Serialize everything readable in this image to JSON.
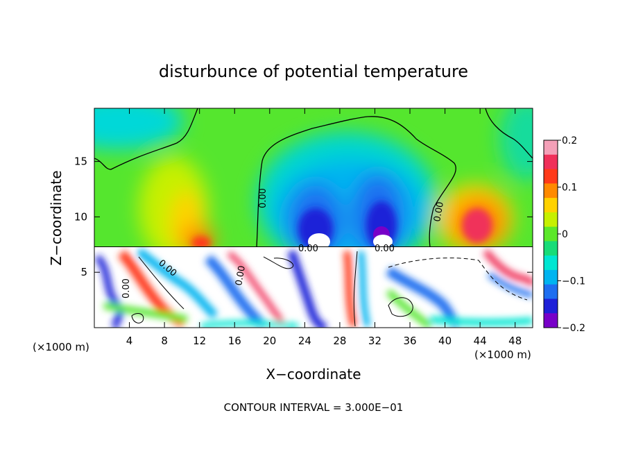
{
  "chart_data": {
    "type": "heatmap",
    "title": "disturbunce of potential temperature",
    "xlabel": "X−coordinate",
    "ylabel": "Z−coordinate",
    "x_unit_left": "(×1000 m)",
    "x_unit_right": "(×1000 m)",
    "xlim": [
      0,
      50
    ],
    "ylim": [
      0,
      19.8
    ],
    "x_ticks": [
      4,
      8,
      12,
      16,
      20,
      24,
      28,
      32,
      36,
      40,
      44,
      48
    ],
    "y_ticks": [
      5,
      10,
      15
    ],
    "colorbar": {
      "range": [
        -0.2,
        0.2
      ],
      "tick_values": [
        0.2,
        0.1,
        0,
        -0.1,
        -0.2
      ],
      "tick_labels": [
        "0.2",
        "0.1",
        "0",
        "−0.1",
        "−0.2"
      ],
      "colors": [
        "#f4a0b8",
        "#f0305a",
        "#ff3a1a",
        "#ff8a00",
        "#ffd200",
        "#c6f000",
        "#5ce82a",
        "#18dc78",
        "#00e6d2",
        "#00b4f0",
        "#1e6ef0",
        "#1e20d8",
        "#7800c8"
      ]
    },
    "contour_labels": [
      "0.00",
      "0.00",
      "0.00",
      "0.00",
      "0.00",
      "0.00",
      "0.00"
    ],
    "boundary_level_z": 7.2,
    "features": [
      {
        "x": 11,
        "z": 8.2,
        "value": 0.16
      },
      {
        "x": 27,
        "z": 9.5,
        "value": -0.2
      },
      {
        "x": 33,
        "z": 9.0,
        "value": -0.2
      },
      {
        "x": 44,
        "z": 9.5,
        "value": 0.18
      },
      {
        "x": 9,
        "z": 12.5,
        "value": 0.07
      },
      {
        "x": 3,
        "z": 18.5,
        "value": -0.09
      }
    ],
    "footnote": "CONTOUR INTERVAL = 3.000E−01"
  }
}
